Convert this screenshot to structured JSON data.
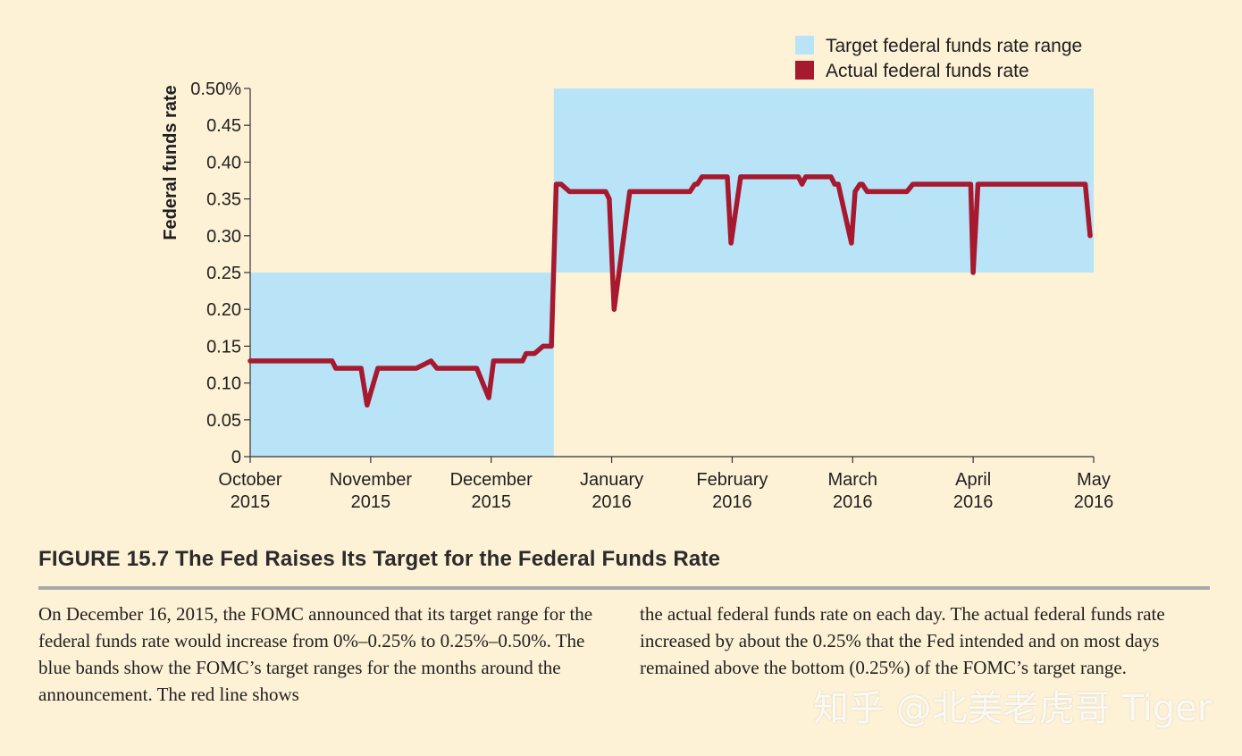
{
  "figure": {
    "title": "FIGURE 15.7  The Fed Raises Its Target for the Federal Funds Rate",
    "caption_left": "On December 16, 2015, the FOMC announced that its target range for the federal funds rate would increase from 0%–0.25% to 0.25%–0.50%. The blue bands show the FOMC’s target ranges for the months around the announcement. The red line shows",
    "caption_right": "the actual federal funds rate on each day. The actual federal funds rate increased by about the 0.25% that the Fed intended and on most days remained above the bottom (0.25%) of the FOMC’s target range.",
    "watermark": "知乎 @北美老虎哥 Tiger"
  },
  "chart_data": {
    "type": "line",
    "ylabel": "Federal funds rate",
    "ylim": [
      0,
      0.5
    ],
    "yticks": [
      "0",
      "0.05",
      "0.10",
      "0.15",
      "0.20",
      "0.25",
      "0.30",
      "0.35",
      "0.40",
      "0.45",
      "0.50%"
    ],
    "ytick_values": [
      0,
      0.05,
      0.1,
      0.15,
      0.2,
      0.25,
      0.3,
      0.35,
      0.4,
      0.45,
      0.5
    ],
    "xlim": [
      0,
      7
    ],
    "xticks": [
      {
        "label": [
          "October",
          "2015"
        ],
        "x": 0
      },
      {
        "label": [
          "November",
          "2015"
        ],
        "x": 1
      },
      {
        "label": [
          "December",
          "2015"
        ],
        "x": 2
      },
      {
        "label": [
          "January",
          "2016"
        ],
        "x": 3
      },
      {
        "label": [
          "February",
          "2016"
        ],
        "x": 4
      },
      {
        "label": [
          "March",
          "2016"
        ],
        "x": 5
      },
      {
        "label": [
          "April",
          "2016"
        ],
        "x": 6
      },
      {
        "label": [
          "May",
          "2016"
        ],
        "x": 7
      }
    ],
    "legend_position": "top-right",
    "colors": {
      "band": "#b9e3f7",
      "line": "#a6192e"
    },
    "bands": [
      {
        "name": "Target federal funds rate range",
        "x0": 0,
        "x1": 2.52,
        "y0": 0,
        "y1": 0.25
      },
      {
        "name": "Target federal funds rate range",
        "x0": 2.52,
        "x1": 7,
        "y0": 0.25,
        "y1": 0.5
      }
    ],
    "series": [
      {
        "name": "Actual federal funds rate",
        "points": [
          [
            0.0,
            0.13
          ],
          [
            0.68,
            0.13
          ],
          [
            0.71,
            0.12
          ],
          [
            0.92,
            0.12
          ],
          [
            0.97,
            0.07
          ],
          [
            1.06,
            0.12
          ],
          [
            1.38,
            0.12
          ],
          [
            1.5,
            0.13
          ],
          [
            1.55,
            0.12
          ],
          [
            1.88,
            0.12
          ],
          [
            1.98,
            0.08
          ],
          [
            2.02,
            0.13
          ],
          [
            2.26,
            0.13
          ],
          [
            2.29,
            0.14
          ],
          [
            2.36,
            0.14
          ],
          [
            2.43,
            0.15
          ],
          [
            2.5,
            0.15
          ],
          [
            2.54,
            0.37
          ],
          [
            2.58,
            0.37
          ],
          [
            2.65,
            0.36
          ],
          [
            2.95,
            0.36
          ],
          [
            2.98,
            0.35
          ],
          [
            3.02,
            0.2
          ],
          [
            3.15,
            0.36
          ],
          [
            3.65,
            0.36
          ],
          [
            3.69,
            0.37
          ],
          [
            3.71,
            0.37
          ],
          [
            3.75,
            0.38
          ],
          [
            3.96,
            0.38
          ],
          [
            3.99,
            0.29
          ],
          [
            4.07,
            0.38
          ],
          [
            4.55,
            0.38
          ],
          [
            4.58,
            0.37
          ],
          [
            4.61,
            0.38
          ],
          [
            4.82,
            0.38
          ],
          [
            4.85,
            0.37
          ],
          [
            4.88,
            0.37
          ],
          [
            4.99,
            0.29
          ],
          [
            5.02,
            0.36
          ],
          [
            5.06,
            0.37
          ],
          [
            5.08,
            0.37
          ],
          [
            5.12,
            0.36
          ],
          [
            5.45,
            0.36
          ],
          [
            5.5,
            0.37
          ],
          [
            5.98,
            0.37
          ],
          [
            6.0,
            0.25
          ],
          [
            6.04,
            0.37
          ],
          [
            6.93,
            0.37
          ],
          [
            6.97,
            0.3
          ]
        ]
      }
    ],
    "legend": [
      {
        "label": "Target federal funds rate range",
        "kind": "band"
      },
      {
        "label": "Actual federal funds rate",
        "kind": "line"
      }
    ]
  }
}
